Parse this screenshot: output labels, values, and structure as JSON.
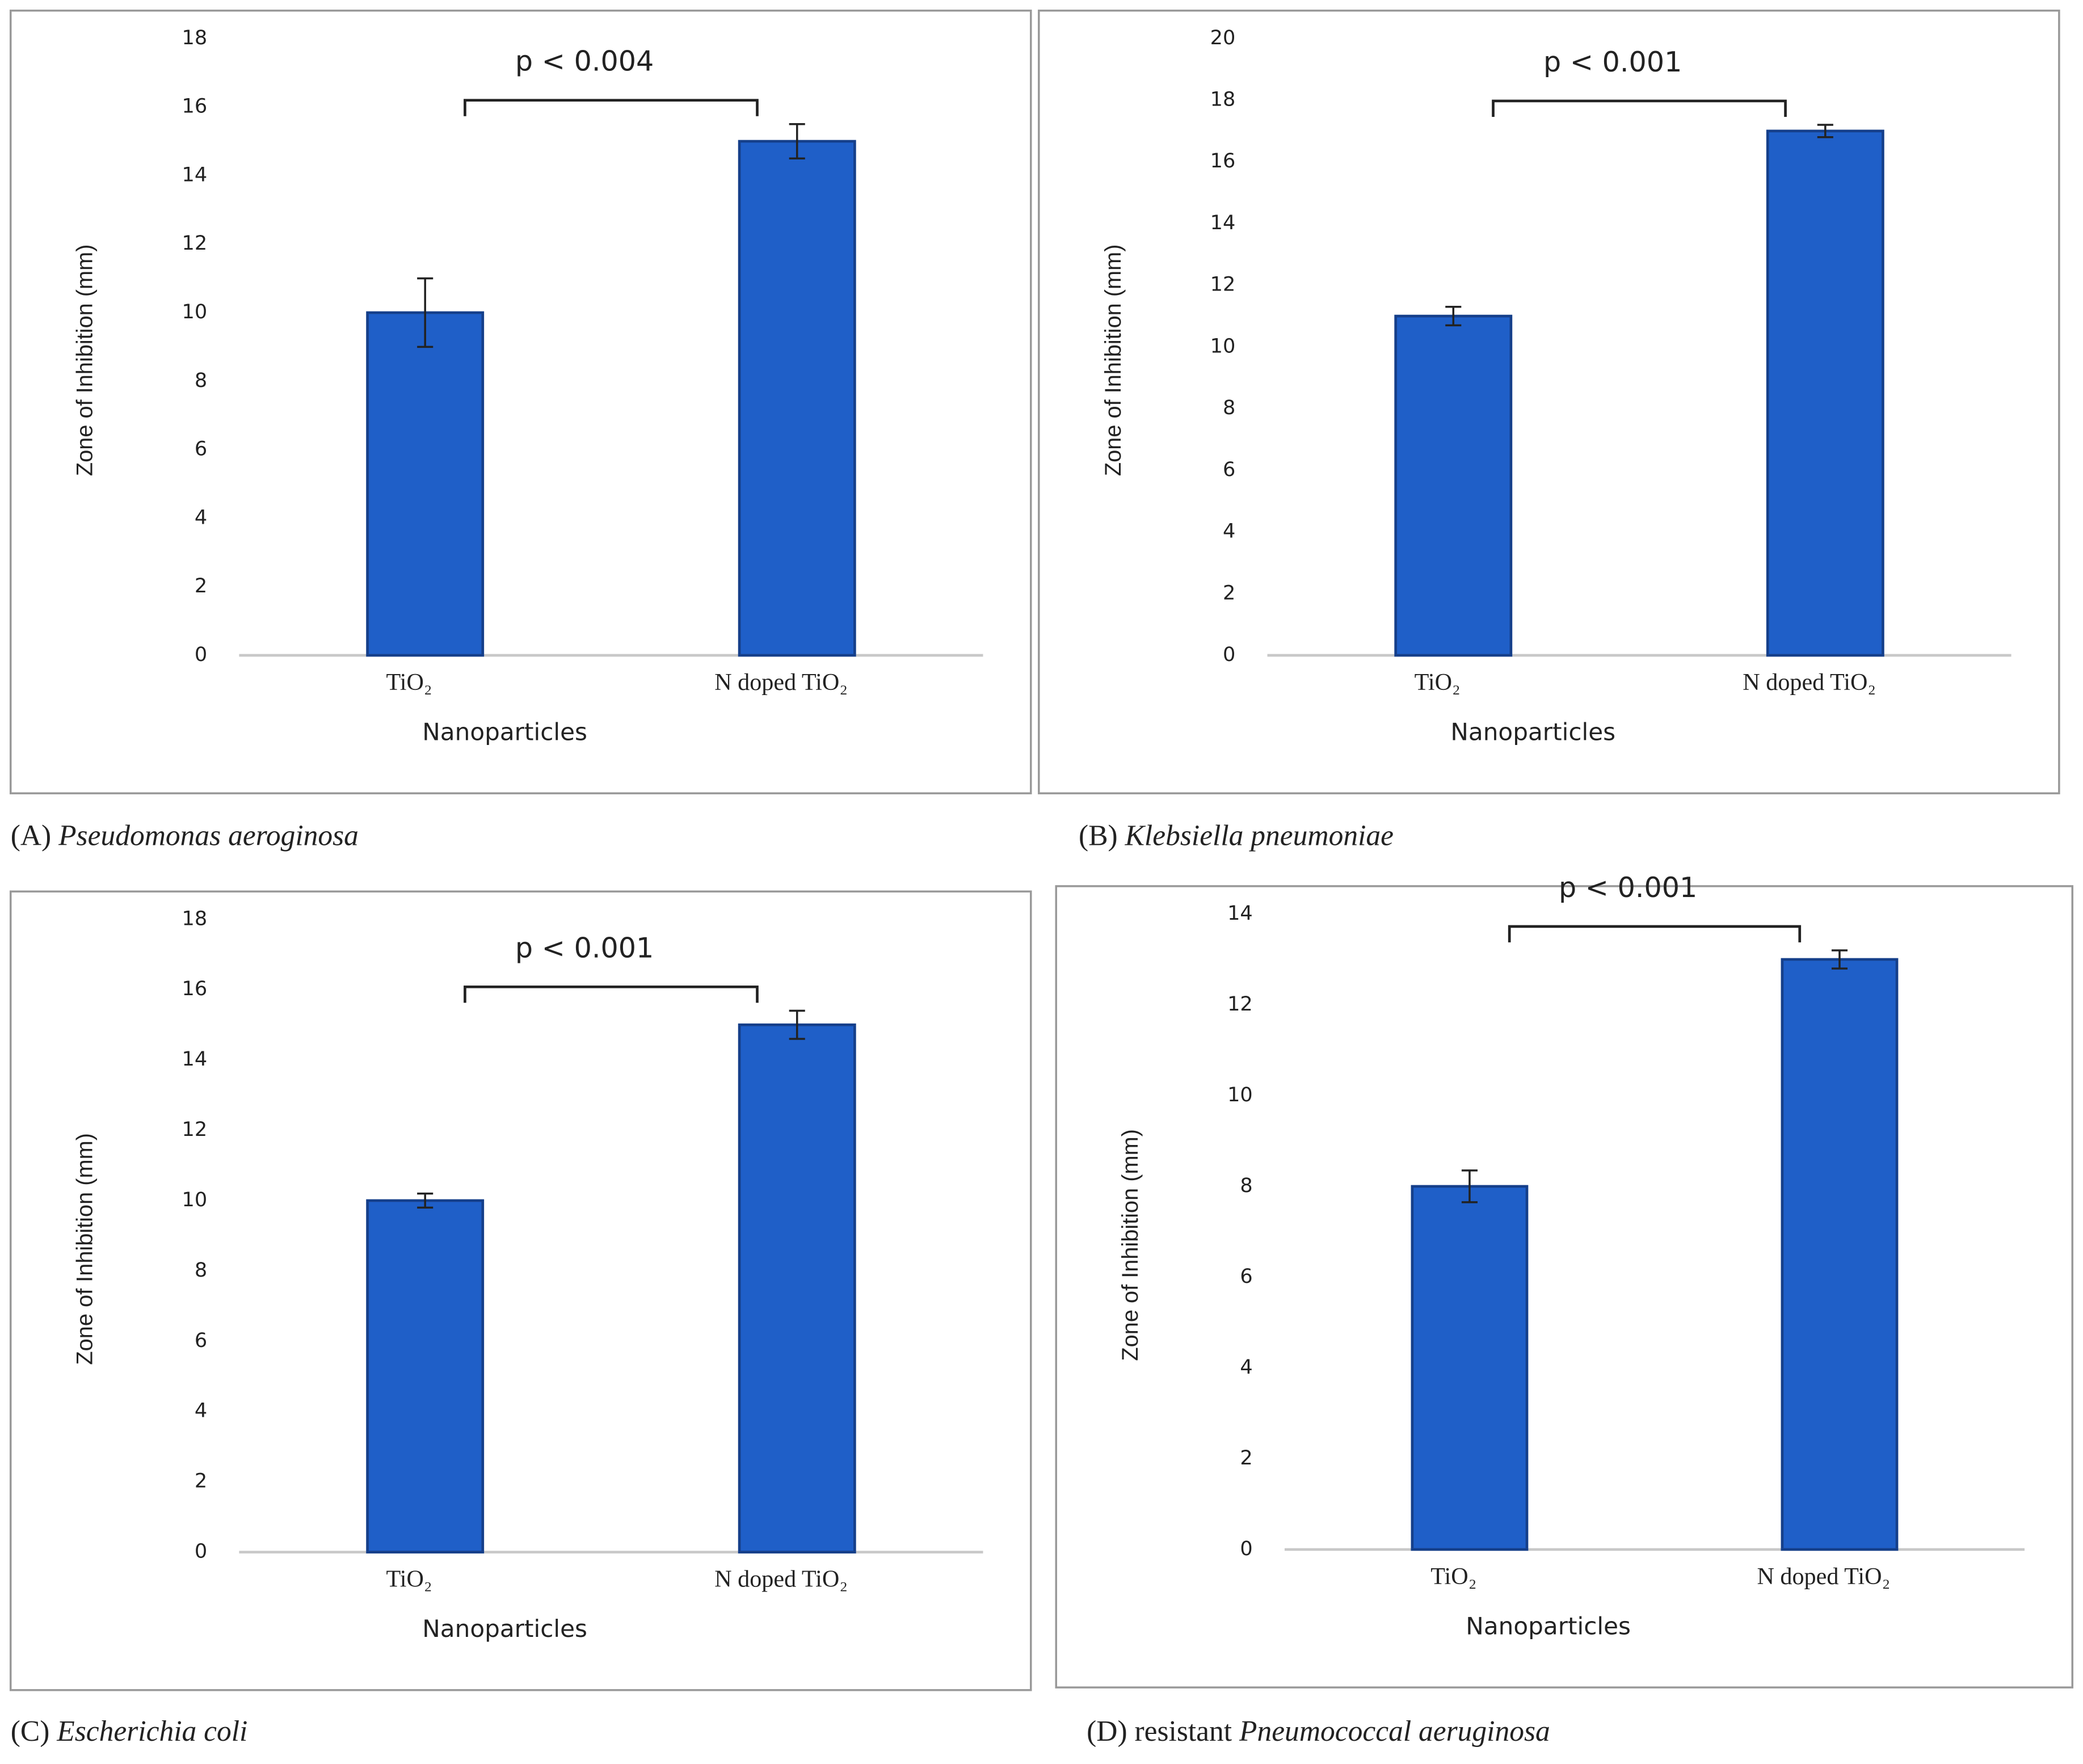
{
  "chart_data": [
    {
      "type": "bar",
      "annotation": "p < 0.004",
      "categories": [
        "TiO₂",
        "N doped TiO₂"
      ],
      "values": [
        10,
        15
      ],
      "errors": [
        1,
        0.5
      ],
      "color": "#1f5fc8",
      "ylim": [
        0,
        18
      ],
      "yticks": [
        0,
        2,
        4,
        6,
        8,
        10,
        12,
        14,
        16,
        18
      ],
      "x_label": "Nanoparticles",
      "y_label": "Zone of Inhibition (mm)",
      "caption_label": "(A)",
      "caption_species": "Pseudomonas aeroginosa"
    },
    {
      "type": "bar",
      "annotation": "p < 0.001",
      "categories": [
        "TiO₂",
        "N doped TiO₂"
      ],
      "values": [
        11,
        17
      ],
      "errors": [
        0.3,
        0.2
      ],
      "color": "#1f5fc8",
      "ylim": [
        0,
        20
      ],
      "yticks": [
        0,
        2,
        4,
        6,
        8,
        10,
        12,
        14,
        16,
        18,
        20
      ],
      "x_label": "Nanoparticles",
      "y_label": "Zone of Inhibition (mm)",
      "caption_label": "(B)",
      "caption_species": "Klebsiella pneumoniae"
    },
    {
      "type": "bar",
      "annotation": "p < 0.001",
      "categories": [
        "TiO₂",
        "N doped TiO₂"
      ],
      "values": [
        10,
        15
      ],
      "errors": [
        0.2,
        0.4
      ],
      "color": "#1f5fc8",
      "ylim": [
        0,
        18
      ],
      "yticks": [
        0,
        2,
        4,
        6,
        8,
        10,
        12,
        14,
        16,
        18
      ],
      "x_label": "Nanoparticles",
      "y_label": "Zone of Inhibition (mm)",
      "caption_label": "(C)",
      "caption_species": "Escherichia coli"
    },
    {
      "type": "bar",
      "annotation": "p < 0.001",
      "categories": [
        "TiO₂",
        "N doped TiO₂"
      ],
      "values": [
        8,
        13
      ],
      "errors": [
        0.35,
        0.2
      ],
      "color": "#1f5fc8",
      "ylim": [
        0,
        14
      ],
      "yticks": [
        0,
        2,
        4,
        6,
        8,
        10,
        12,
        14
      ],
      "x_label": "Nanoparticles",
      "y_label": "Zone of Inhibition (mm)",
      "caption_label": "(D) resistant",
      "caption_species": "Pneumococcal aeruginosa"
    }
  ]
}
